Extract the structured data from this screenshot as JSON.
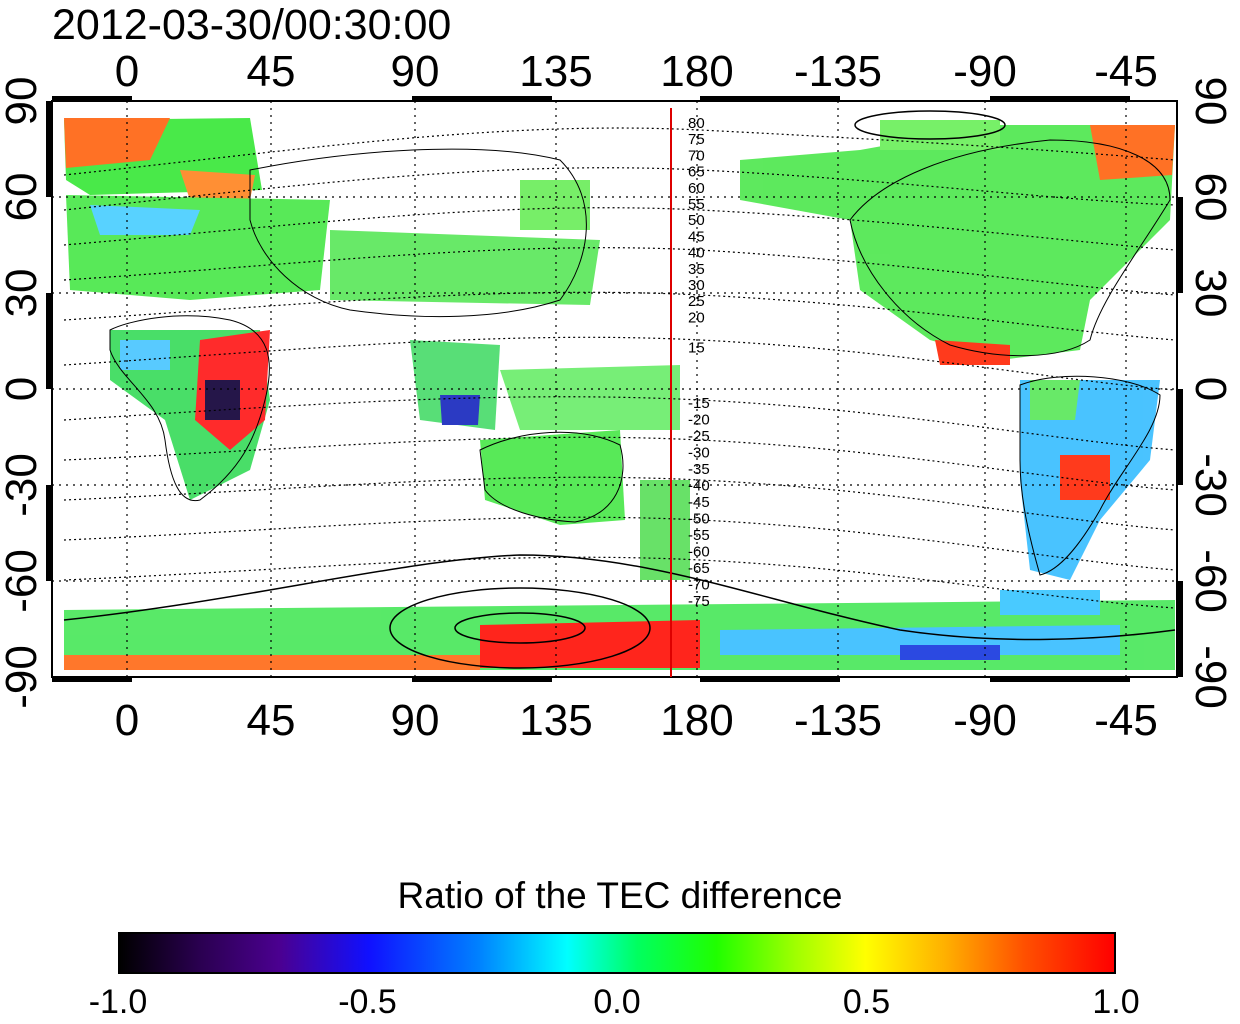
{
  "title": "2012-03-30/00:30:00",
  "map": {
    "lon_ticks_top": [
      "0",
      "45",
      "90",
      "135",
      "180",
      "-135",
      "-90",
      "-45"
    ],
    "lon_ticks_bottom": [
      "0",
      "45",
      "90",
      "135",
      "180",
      "-135",
      "-90",
      "-45"
    ],
    "lat_ticks_left": [
      "90",
      "60",
      "30",
      "0",
      "-30",
      "-60",
      "-90"
    ],
    "lat_ticks_right": [
      "90",
      "60",
      "30",
      "0",
      "-30",
      "-60",
      "-90"
    ],
    "contour_labels_north": [
      "80",
      "75",
      "70",
      "65",
      "60",
      "55",
      "50",
      "45",
      "40",
      "35",
      "30",
      "25",
      "20",
      "15"
    ],
    "contour_labels_south": [
      "-15",
      "-20",
      "-25",
      "-30",
      "-35",
      "-40",
      "-45",
      "-50",
      "-55",
      "-60",
      "-65",
      "-70",
      "-75"
    ],
    "meridian_line_color": "#dd0000",
    "meridian_line_lon": 172
  },
  "colorbar": {
    "title": "Ratio of the TEC difference",
    "ticks": [
      "-1.0",
      "-0.5",
      "0.0",
      "0.5",
      "1.0"
    ],
    "tick_values": [
      -1.0,
      -0.5,
      0.0,
      0.5,
      1.0
    ],
    "min": -1.0,
    "max": 1.0,
    "colors": [
      "#000000",
      "#4b0090",
      "#1010ff",
      "#00ffff",
      "#20ff00",
      "#ffff00",
      "#ff0000"
    ]
  }
}
